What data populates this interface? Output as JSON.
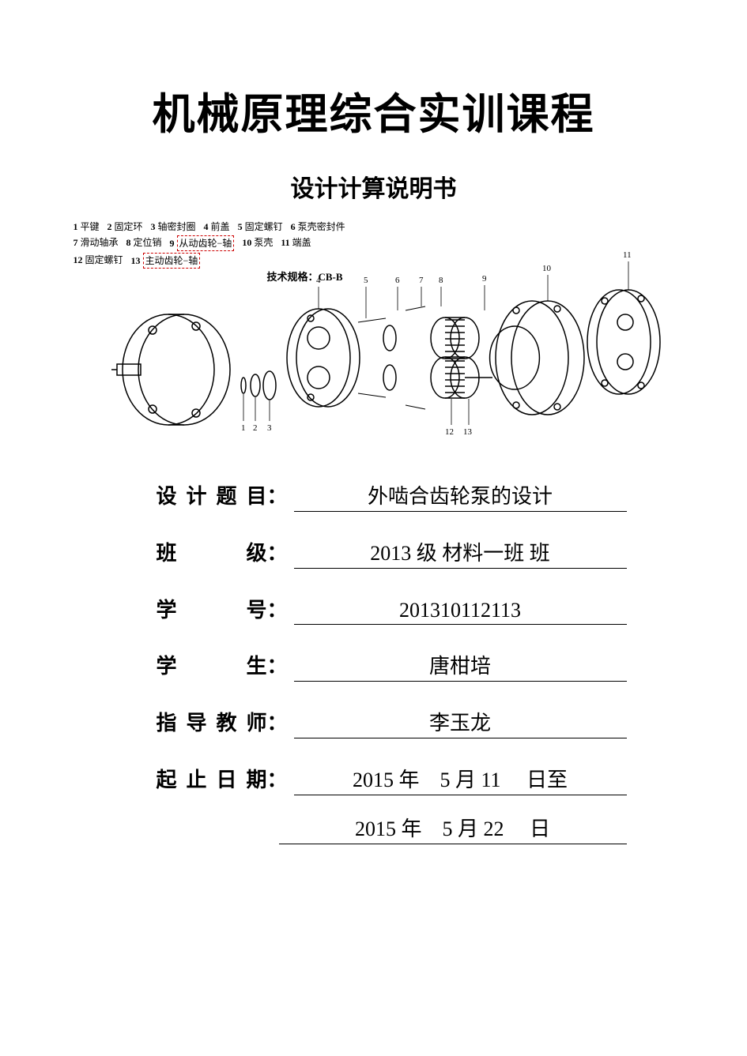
{
  "title": "机械原理综合实训课程",
  "subtitle": "设计计算说明书",
  "parts_legend": {
    "row1": [
      {
        "num": "1",
        "name": "平键"
      },
      {
        "num": "2",
        "name": "固定环"
      },
      {
        "num": "3",
        "name": "轴密封圈"
      },
      {
        "num": "4",
        "name": "前盖"
      },
      {
        "num": "5",
        "name": "固定螺钉"
      },
      {
        "num": "6",
        "name": "泵壳密封件"
      }
    ],
    "row2": [
      {
        "num": "7",
        "name": "滑动轴承"
      },
      {
        "num": "8",
        "name": "定位销"
      },
      {
        "num": "9",
        "name": "从动齿轮−轴",
        "boxed": true
      },
      {
        "num": "10",
        "name": "泵壳"
      },
      {
        "num": "11",
        "name": "端盖"
      }
    ],
    "row3": [
      {
        "num": "12",
        "name": "固定螺钉"
      },
      {
        "num": "13",
        "name": "主动齿轮−轴",
        "boxed": true
      }
    ]
  },
  "spec_label": "技术规格：CB-B",
  "callouts": [
    "1",
    "2",
    "3",
    "4",
    "5",
    "6",
    "7",
    "8",
    "9",
    "10",
    "11",
    "12",
    "13"
  ],
  "form": {
    "design_topic_label": "设计题目",
    "design_topic_value": "外啮合齿轮泵的设计",
    "class_label": "班级",
    "class_value": "2013 级  材料一班  班",
    "student_id_label": "学号",
    "student_id_value": "201310112113",
    "student_label": "学生",
    "student_value": "唐柑培",
    "advisor_label": "指导教师",
    "advisor_value": "李玉龙",
    "date_label": "起止日期",
    "date_start_year": "2015",
    "date_start_month": "5",
    "date_start_day": "11",
    "date_end_year": "2015",
    "date_end_month": "5",
    "date_end_day": "22",
    "year_char": "年",
    "month_char": "月",
    "day_char": "日",
    "to_char": "至"
  },
  "colors": {
    "text": "#000000",
    "background": "#ffffff",
    "dashed_box": "#cc0000",
    "underline": "#000000"
  }
}
